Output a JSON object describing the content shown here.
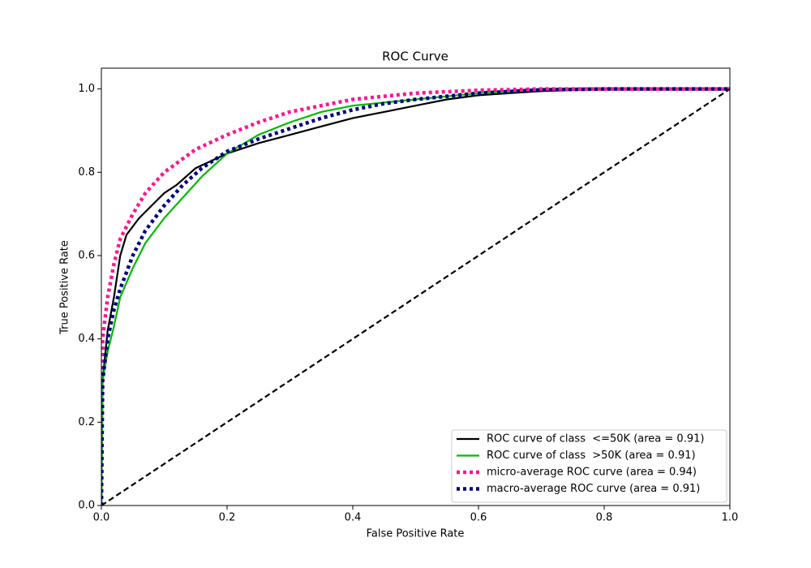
{
  "chart_data": {
    "type": "line",
    "title": "ROC Curve",
    "x_label": "False Positive Rate",
    "y_label": "True Positive Rate",
    "xlim": [
      0,
      1
    ],
    "ylim": [
      0,
      1.05
    ],
    "xticks": [
      {
        "value": 0,
        "label": "0.0"
      },
      0.2,
      0.4,
      0.6,
      0.8,
      {
        "value": 1,
        "label": "1.0"
      }
    ],
    "yticks": [
      {
        "value": 0,
        "label": "0.0"
      },
      0.2,
      0.4,
      0.6,
      0.8,
      {
        "value": 1,
        "label": "1.0"
      }
    ],
    "grid": false,
    "legend": "lower right",
    "series": [
      {
        "name": "ROC curve of class  <=50K (area = 0.91)",
        "color": "#000000",
        "dash": "solid",
        "x": [
          0,
          0.002,
          0.01,
          0.02,
          0.03,
          0.04,
          0.06,
          0.08,
          0.1,
          0.12,
          0.15,
          0.2,
          0.25,
          0.3,
          0.35,
          0.4,
          0.45,
          0.5,
          0.55,
          0.6,
          0.7,
          0.8,
          1
        ],
        "values": [
          0,
          0.3,
          0.42,
          0.5,
          0.6,
          0.65,
          0.69,
          0.72,
          0.75,
          0.77,
          0.81,
          0.845,
          0.87,
          0.89,
          0.91,
          0.93,
          0.945,
          0.96,
          0.975,
          0.985,
          0.995,
          1,
          1
        ]
      },
      {
        "name": "ROC curve of class  >50K (area = 0.91)",
        "color": "#00bb00",
        "dash": "solid",
        "x": [
          0,
          0.002,
          0.01,
          0.02,
          0.03,
          0.05,
          0.07,
          0.1,
          0.13,
          0.16,
          0.2,
          0.25,
          0.3,
          0.35,
          0.4,
          0.5,
          0.6,
          0.7,
          0.8,
          1
        ],
        "values": [
          0,
          0.3,
          0.37,
          0.43,
          0.5,
          0.57,
          0.63,
          0.69,
          0.74,
          0.79,
          0.845,
          0.89,
          0.92,
          0.945,
          0.96,
          0.975,
          0.99,
          0.998,
          1,
          1
        ]
      },
      {
        "name": "micro-average ROC curve (area = 0.94)",
        "color": "#ff1493",
        "dash": "dotted",
        "x": [
          0,
          0.002,
          0.01,
          0.02,
          0.03,
          0.05,
          0.07,
          0.1,
          0.15,
          0.2,
          0.25,
          0.3,
          0.35,
          0.4,
          0.5,
          0.6,
          0.7,
          1
        ],
        "values": [
          0,
          0.4,
          0.5,
          0.58,
          0.64,
          0.7,
          0.75,
          0.8,
          0.855,
          0.89,
          0.92,
          0.945,
          0.96,
          0.975,
          0.99,
          0.997,
          1,
          1
        ]
      },
      {
        "name": "macro-average ROC curve (area = 0.91)",
        "color": "#000080",
        "dash": "dotted",
        "x": [
          0,
          0.002,
          0.01,
          0.02,
          0.03,
          0.05,
          0.07,
          0.1,
          0.13,
          0.16,
          0.2,
          0.25,
          0.3,
          0.35,
          0.4,
          0.45,
          0.5,
          0.6,
          0.7,
          0.8,
          1
        ],
        "values": [
          0,
          0.3,
          0.4,
          0.47,
          0.52,
          0.6,
          0.66,
          0.72,
          0.77,
          0.81,
          0.85,
          0.88,
          0.905,
          0.93,
          0.95,
          0.965,
          0.975,
          0.99,
          0.998,
          1,
          1
        ]
      },
      {
        "color": "#000000",
        "dash": "dashed",
        "x": [
          0,
          1
        ],
        "values": [
          0,
          1
        ]
      }
    ]
  }
}
